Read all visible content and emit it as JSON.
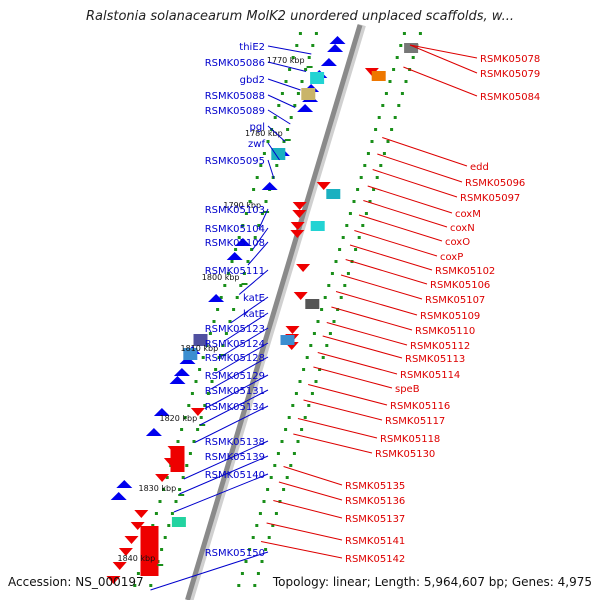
{
  "title": "Ralstonia solanacearum MolK2 unordered unplaced scaffolds, w...",
  "footer": {
    "accession": "Accession: NS_000197",
    "topology": "Topology: linear; Length: 5,964,607 bp; Genes: 4,975"
  },
  "colors": {
    "left_labels": "#0000cc",
    "right_labels": "#dd0000",
    "forward_genes": "#0000ee",
    "reverse_genes": "#ee0000",
    "backbone": "#8a8a8a",
    "ticks": "#1a8f1a"
  },
  "ticks": [
    "1770 kbp",
    "1780 kbp",
    "1790 kbp",
    "1800 kbp",
    "1810 kbp",
    "1820 kbp",
    "1830 kbp",
    "1840 kbp"
  ],
  "left_labels": [
    "thiE2",
    "RSMK05086",
    "gbd2",
    "RSMK05088",
    "RSMK05089",
    "pgl",
    "zwf",
    "RSMK05095",
    "RSMK05103",
    "RSMK05104",
    "RSMK05108",
    "RSMK05111",
    "katE",
    "katE",
    "RSMK05123",
    "RSMK05124",
    "RSMK05128",
    "RSMK05129",
    "RSMK05131",
    "RSMK05134",
    "RSMK05138",
    "RSMK05139",
    "RSMK05140",
    "RSMK05150"
  ],
  "right_labels": [
    "RSMK05078",
    "RSMK05079",
    "RSMK05084",
    "edd",
    "RSMK05096",
    "RSMK05097",
    "coxM",
    "coxN",
    "coxO",
    "coxP",
    "RSMK05102",
    "RSMK05106",
    "RSMK05107",
    "RSMK05109",
    "RSMK05110",
    "RSMK05112",
    "RSMK05113",
    "RSMK05114",
    "speB",
    "RSMK05116",
    "RSMK05117",
    "RSMK05118",
    "RSMK05130",
    "RSMK05135",
    "RSMK05136",
    "RSMK05137",
    "RSMK05141",
    "RSMK05142"
  ]
}
